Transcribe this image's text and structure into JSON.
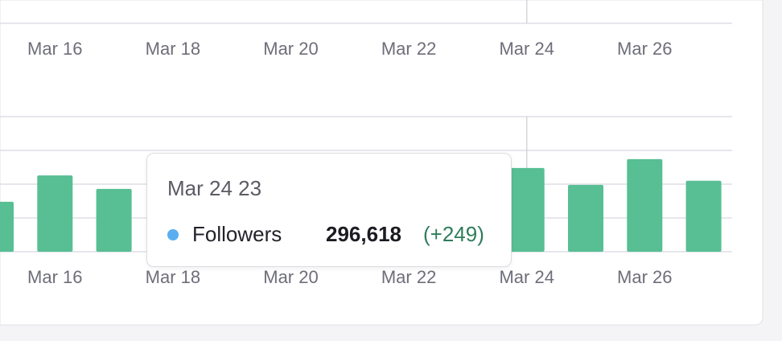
{
  "chart_data": [
    {
      "type": "line",
      "categories": [
        null,
        "Mar 16",
        null,
        "Mar 18",
        null,
        "Mar 20",
        null,
        "Mar 22",
        null,
        "Mar 24",
        null,
        "Mar 26",
        null
      ]
    },
    {
      "type": "bar",
      "categories": [
        null,
        "Mar 16",
        null,
        "Mar 18",
        null,
        "Mar 20",
        null,
        "Mar 22",
        null,
        "Mar 24",
        null,
        "Mar 26",
        null
      ],
      "values": [
        1.48,
        2.26,
        1.86,
        null,
        null,
        null,
        null,
        null,
        null,
        2.48,
        1.98,
        2.74,
        2.1
      ],
      "color": "#57bf93",
      "ylim": [
        0,
        4
      ],
      "yticks": [
        0,
        1,
        2,
        3,
        4
      ],
      "grid": true
    }
  ],
  "tooltip": {
    "title": "Mar 24 23",
    "series_name": "Followers",
    "series_color": "#5aaef0",
    "value": "296,618",
    "change": "(+249)"
  }
}
